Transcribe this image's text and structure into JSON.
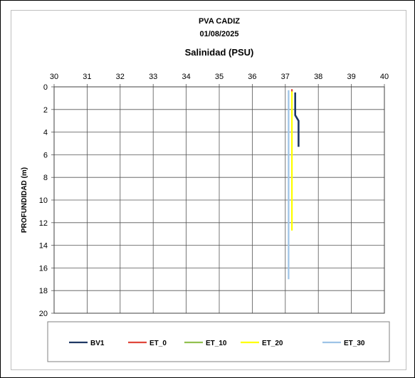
{
  "chart_data": {
    "type": "line",
    "orientation": "depth-profile",
    "title": "PVA CADIZ",
    "subtitle": "01/08/2025",
    "xlabel": "Salinidad (PSU)",
    "ylabel": "PROFUNDIDAD (m)",
    "xlim": [
      30,
      40
    ],
    "ylim": [
      0,
      20
    ],
    "y_inverted": true,
    "x_axis_position": "top",
    "x_ticks": [
      "30",
      "31",
      "32",
      "33",
      "34",
      "35",
      "36",
      "37",
      "38",
      "39",
      "40"
    ],
    "y_ticks": [
      "0",
      "2",
      "4",
      "6",
      "8",
      "10",
      "12",
      "14",
      "16",
      "18",
      "20"
    ],
    "grid": true,
    "legend_position": "bottom",
    "series": [
      {
        "name": "BV1",
        "color": "#1f3864",
        "points": [
          [
            37.3,
            0.5
          ],
          [
            37.3,
            2.5
          ],
          [
            37.4,
            3.0
          ],
          [
            37.4,
            5.3
          ]
        ]
      },
      {
        "name": "ET_0",
        "color": "#e0473c",
        "points": [
          [
            37.2,
            0.2
          ],
          [
            37.2,
            0.4
          ]
        ]
      },
      {
        "name": "ET_10",
        "color": "#92c050",
        "points": []
      },
      {
        "name": "ET_20",
        "color": "#ffff00",
        "points": [
          [
            37.2,
            0.3
          ],
          [
            37.2,
            12.7
          ]
        ]
      },
      {
        "name": "ET_30",
        "color": "#9dc3e6",
        "points": [
          [
            37.1,
            0.3
          ],
          [
            37.1,
            17.0
          ]
        ]
      }
    ]
  }
}
